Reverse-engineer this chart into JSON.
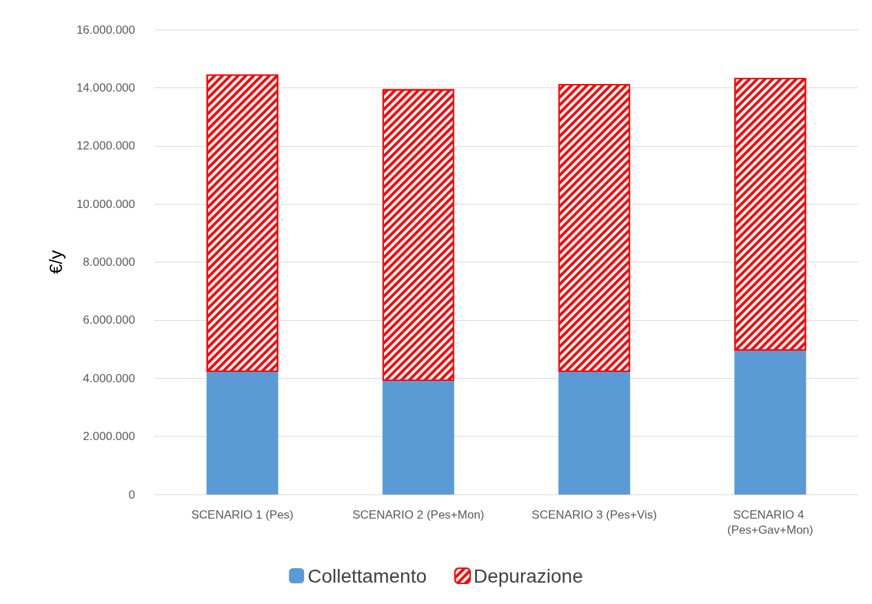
{
  "chart_data": {
    "type": "bar",
    "stacked": true,
    "ylabel": "€/y",
    "categories": [
      "SCENARIO 1 (Pes)",
      "SCENARIO 2 (Pes+Mon)",
      "SCENARIO 3 (Pes+Vis)",
      "SCENARIO 4 (Pes+Gav+Mon)"
    ],
    "series": [
      {
        "name": "Collettamento",
        "color": "#5b9bd5",
        "values": [
          4220000,
          3910000,
          4220000,
          4950000
        ]
      },
      {
        "name": "Depurazione",
        "color": "#ff0000",
        "values": [
          10240000,
          10040000,
          9910000,
          9390000
        ]
      }
    ],
    "ylim": [
      0,
      16000000
    ],
    "yticks": [
      {
        "value": 0,
        "label": "0"
      },
      {
        "value": 2000000,
        "label": "2.000.000"
      },
      {
        "value": 4000000,
        "label": "4.000.000"
      },
      {
        "value": 6000000,
        "label": "6.000.000"
      },
      {
        "value": 8000000,
        "label": "8.000.000"
      },
      {
        "value": 10000000,
        "label": "10.000.000"
      },
      {
        "value": 12000000,
        "label": "12.000.000"
      },
      {
        "value": 14000000,
        "label": "14.000.000"
      },
      {
        "value": 16000000,
        "label": "16.000.000"
      }
    ],
    "grid": "y",
    "legend": "bottom"
  }
}
